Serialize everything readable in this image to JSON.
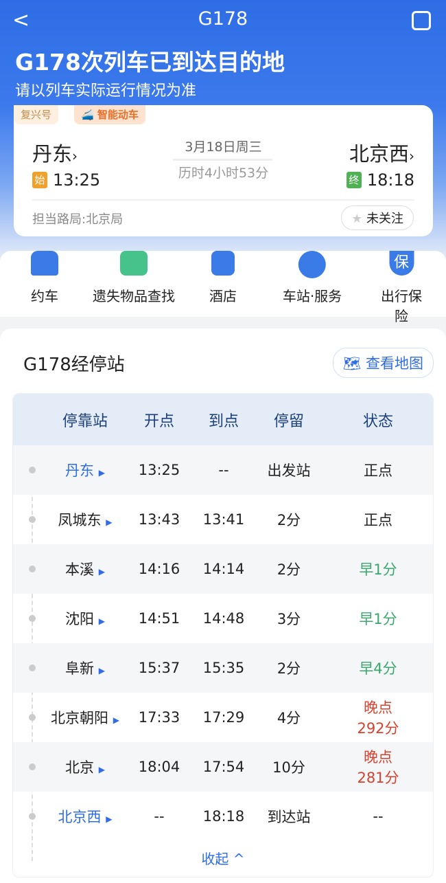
{
  "nav": {
    "title": "G178",
    "back": "<"
  },
  "banner": {
    "title": "G178次列车已到达目的地",
    "subtitle": "请以列车实际运行情况为准"
  },
  "card": {
    "tag1": "复兴号",
    "tag2": "智能动车",
    "from": "丹东",
    "to": "北京西",
    "from_badge": "始",
    "to_badge": "终",
    "dep": "13:25",
    "arr": "18:18",
    "date": "3月18日周三",
    "duration": "历时4小时53分",
    "bureau": "担当路局:北京局",
    "follow": "未关注"
  },
  "services": [
    {
      "label": "约车",
      "icon": "car-icon"
    },
    {
      "label": "遗失物品查找",
      "icon": "lost-found-icon"
    },
    {
      "label": "酒店",
      "icon": "hotel-icon"
    },
    {
      "label": "车站·服务",
      "icon": "station-service-icon"
    },
    {
      "label": "出行保险",
      "icon": "insurance-icon",
      "glyph": "保"
    }
  ],
  "stops": {
    "title": "G178经停站",
    "map": "查看地图",
    "headers": [
      "停靠站",
      "开点",
      "到点",
      "停留",
      "状态"
    ],
    "rows": [
      {
        "station": "丹东",
        "dep": "13:25",
        "arr": "--",
        "stay": "出发站",
        "status": "正点"
      },
      {
        "station": "凤城东",
        "dep": "13:43",
        "arr": "13:41",
        "stay": "2分",
        "status": "正点"
      },
      {
        "station": "本溪",
        "dep": "14:16",
        "arr": "14:14",
        "stay": "2分",
        "status": "早1分"
      },
      {
        "station": "沈阳",
        "dep": "14:51",
        "arr": "14:48",
        "stay": "3分",
        "status": "早1分"
      },
      {
        "station": "阜新",
        "dep": "15:37",
        "arr": "15:35",
        "stay": "2分",
        "status": "早4分"
      },
      {
        "station": "北京朝阳",
        "dep": "17:33",
        "arr": "17:29",
        "stay": "4分",
        "status": "晚点292分"
      },
      {
        "station": "北京",
        "dep": "18:04",
        "arr": "17:54",
        "stay": "10分",
        "status": "晚点281分"
      },
      {
        "station": "北京西",
        "dep": "--",
        "arr": "18:18",
        "stay": "到达站",
        "status": "--"
      }
    ],
    "collapse": "收起 ^"
  },
  "colors": {
    "primary": "#2f6de6",
    "early": "#3aa76d",
    "late": "#d9412e"
  }
}
